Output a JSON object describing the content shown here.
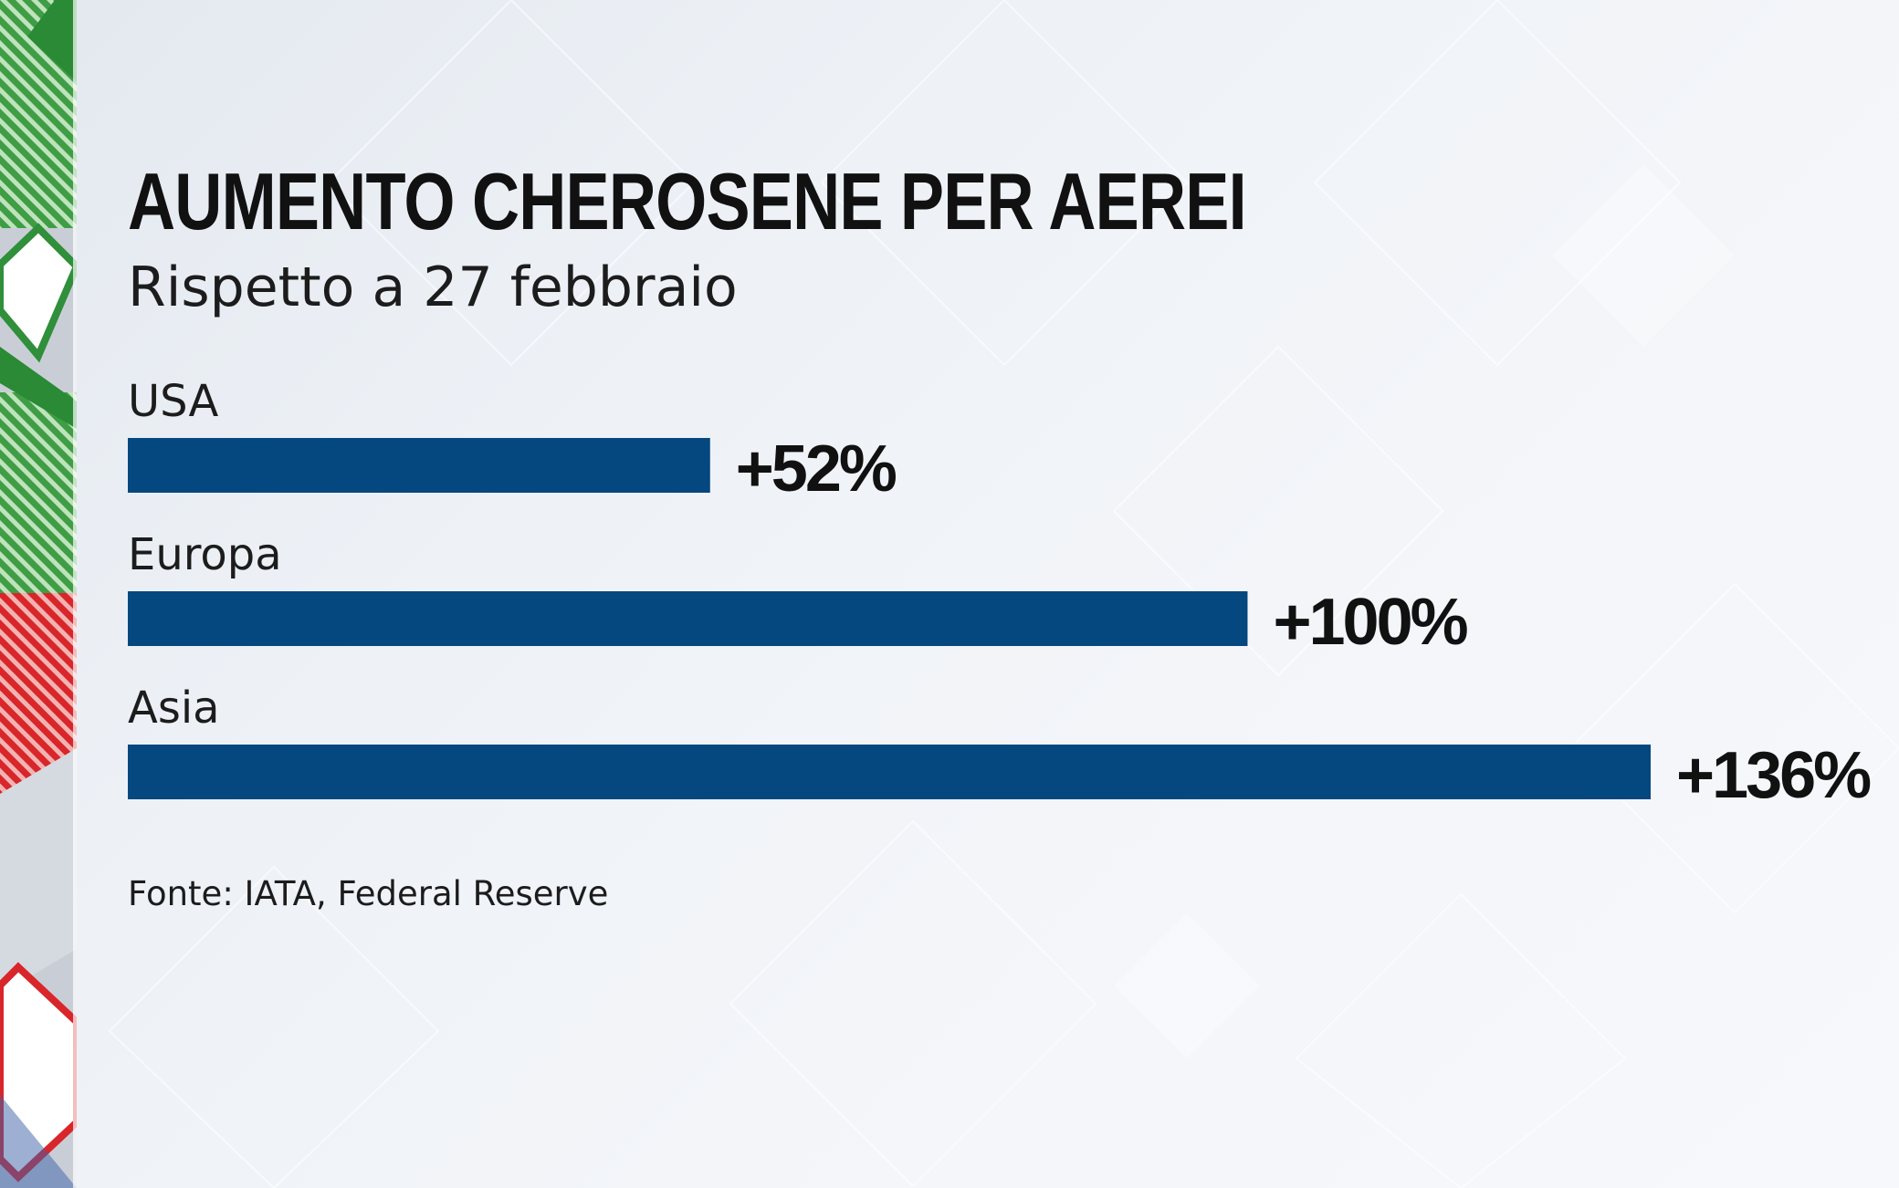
{
  "header": {
    "title": "AUMENTO CHEROSENE PER AEREI",
    "subtitle": "Rispetto a 27 febbraio"
  },
  "footer": {
    "source": "Fonte: IATA, Federal Reserve"
  },
  "colors": {
    "bar": "#05477f",
    "text": "#111111",
    "side_green": "#2f8f3a",
    "side_red": "#d8262a"
  },
  "chart_data": {
    "type": "bar",
    "orientation": "horizontal",
    "title": "AUMENTO CHEROSENE PER AEREI",
    "subtitle": "Rispetto a 27 febbraio",
    "categories": [
      "USA",
      "Europa",
      "Asia"
    ],
    "values": [
      52,
      100,
      136
    ],
    "value_labels": [
      "+52%",
      "+100%",
      "+136%"
    ],
    "unit": "%",
    "xlim": [
      0,
      136
    ],
    "grid": false,
    "legend": "none",
    "source": "Fonte: IATA, Federal Reserve"
  }
}
